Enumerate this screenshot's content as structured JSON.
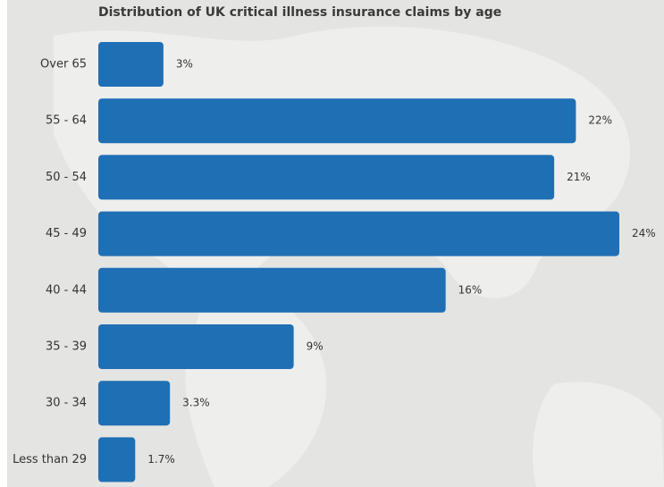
{
  "chart_data": {
    "type": "bar",
    "orientation": "horizontal",
    "title": "Distribution of UK critical illness insurance claims by age",
    "categories": [
      "Over 65",
      "55 - 64",
      "50 - 54",
      "45 - 49",
      "40 - 44",
      "35 - 39",
      "30 - 34",
      "Less than 29"
    ],
    "values": [
      3,
      22,
      21,
      24,
      16,
      9,
      3.3,
      1.7
    ],
    "value_labels": [
      "3%",
      "22%",
      "21%",
      "24%",
      "16%",
      "9%",
      "3.3%",
      "1.7%"
    ],
    "color": "#1f6fb5"
  }
}
